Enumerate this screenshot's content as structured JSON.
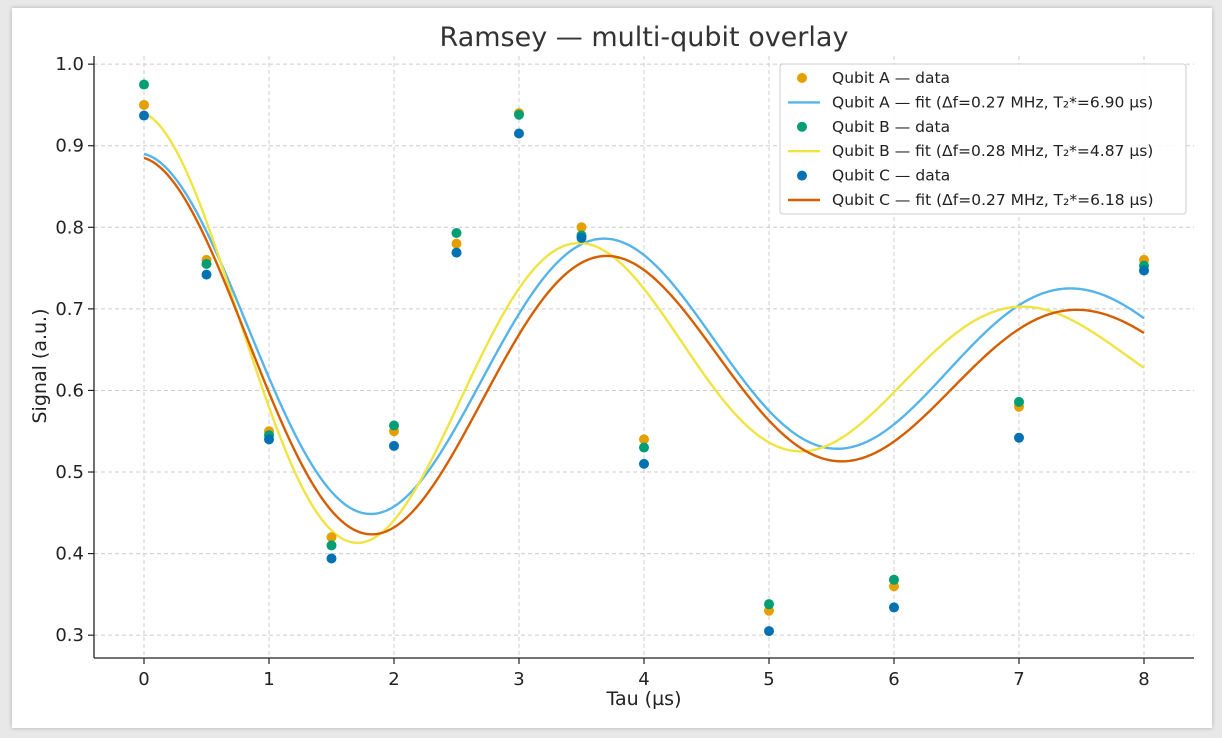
{
  "chart_data": {
    "type": "scatter",
    "title": "Ramsey — multi-qubit overlay",
    "xlabel": "Tau (µs)",
    "ylabel": "Signal (a.u.)",
    "xlim": [
      -0.4,
      8.4
    ],
    "ylim": [
      0.272,
      1.01
    ],
    "xticks": [
      0,
      1,
      2,
      3,
      4,
      5,
      6,
      7,
      8
    ],
    "yticks": [
      0.3,
      0.4,
      0.5,
      0.6,
      0.7,
      0.8,
      0.9,
      1.0
    ],
    "grid": true,
    "legend_position": "top-right",
    "x": [
      0,
      0.5,
      1,
      1.5,
      2,
      2.5,
      3,
      3.5,
      4,
      5,
      6,
      7,
      8
    ],
    "series": [
      {
        "name": "Qubit A",
        "data_label": "Qubit A — data",
        "fit_label": "Qubit A — fit (Δf=0.27 MHz, T₂*=6.90 µs)",
        "data_color": "#E69F00",
        "fit_color": "#56B4E9",
        "values": [
          0.95,
          0.76,
          0.55,
          0.42,
          0.55,
          0.78,
          0.94,
          0.8,
          0.54,
          0.33,
          0.36,
          0.58,
          0.76
        ],
        "fit": {
          "A": 0.25,
          "f": 0.268,
          "T2": 6.9,
          "phi": 0,
          "C": 0.64
        }
      },
      {
        "name": "Qubit B",
        "data_label": "Qubit B — data",
        "fit_label": "Qubit B — fit (Δf=0.28 MHz, T₂*=4.87 µs)",
        "data_color": "#009E73",
        "fit_color": "#F0E442",
        "values": [
          0.975,
          0.755,
          0.545,
          0.41,
          0.557,
          0.793,
          0.938,
          0.79,
          0.53,
          0.338,
          0.368,
          0.586,
          0.753
        ],
        "fit": {
          "A": 0.31,
          "f": 0.282,
          "T2": 4.87,
          "phi": 0,
          "C": 0.63
        }
      },
      {
        "name": "Qubit C",
        "data_label": "Qubit C — data",
        "fit_label": "Qubit C — fit (Δf=0.27 MHz, T₂*=6.18 µs)",
        "data_color": "#0072B2",
        "fit_color": "#D55E00",
        "values": [
          0.937,
          0.742,
          0.54,
          0.394,
          0.532,
          0.769,
          0.915,
          0.787,
          0.51,
          0.305,
          0.334,
          0.542,
          0.747
        ],
        "fit": {
          "A": 0.265,
          "f": 0.266,
          "T2": 6.18,
          "phi": 0,
          "C": 0.62
        }
      }
    ]
  }
}
